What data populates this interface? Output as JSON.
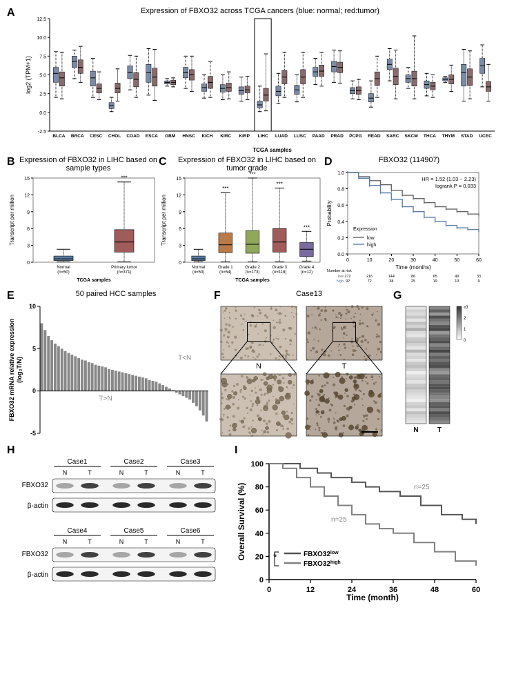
{
  "colors": {
    "normal": "#7a8ba8",
    "tumor": "#8a6b6b",
    "km_low": "#666666",
    "km_high": "#5b7ea6",
    "bar": "#888888",
    "axis": "#000000",
    "whisker": "#000000",
    "text": "#000000",
    "heatmap_min": "#f7f7f7",
    "heatmap_max": "#555555",
    "survival_low": "#555555",
    "survival_high": "#808080"
  },
  "panelA": {
    "label": "A",
    "title": "Expression of FBXO32 across TCGA cancers (blue: normal; red:tumor)",
    "ylabel": "log2 (TPM+1)",
    "xlabel": "TCGA samples",
    "ylim": [
      -2.5,
      12.5
    ],
    "yticks": [
      -2.5,
      0.0,
      2.5,
      5.0,
      7.5,
      10.0,
      12.5
    ],
    "highlight": "LIHC",
    "categories": [
      "BLCA",
      "BRCA",
      "CESC",
      "CHOL",
      "COAD",
      "ESCA",
      "GBM",
      "HNSC",
      "KICH",
      "KIRC",
      "KIRP",
      "LIHC",
      "LUAD",
      "LUSC",
      "PAAD",
      "PRAD",
      "PCPG",
      "READ",
      "SARC",
      "SKCM",
      "THCA",
      "THYM",
      "STAD",
      "UCEC"
    ],
    "boxes": [
      {
        "n": [
          4.0,
          5.2,
          6.0,
          2.0,
          8.1
        ],
        "t": [
          3.5,
          4.6,
          5.4,
          1.8,
          8.0
        ]
      },
      {
        "n": [
          6.0,
          6.8,
          7.5,
          4.5,
          8.3
        ],
        "t": [
          5.2,
          6.0,
          7.0,
          4.0,
          8.8
        ]
      },
      {
        "n": [
          3.5,
          4.6,
          5.5,
          2.0,
          7.2
        ],
        "t": [
          2.6,
          3.2,
          3.8,
          1.7,
          5.4
        ]
      },
      {
        "n": [
          0.5,
          0.9,
          1.3,
          0.1,
          2.0
        ],
        "t": [
          2.6,
          3.2,
          3.9,
          1.5,
          5.8
        ]
      },
      {
        "n": [
          4.5,
          5.3,
          6.2,
          3.0,
          7.6
        ],
        "t": [
          3.4,
          4.4,
          5.3,
          2.0,
          7.5
        ]
      },
      {
        "n": [
          4.0,
          5.3,
          6.4,
          2.3,
          8.5
        ],
        "t": [
          3.5,
          4.7,
          5.9,
          1.6,
          8.4
        ]
      },
      {
        "n": [
          3.8,
          4.0,
          4.2,
          3.5,
          4.5
        ],
        "t": [
          3.7,
          4.0,
          4.3,
          3.4,
          4.6
        ]
      },
      {
        "n": [
          4.6,
          5.3,
          6.0,
          3.2,
          7.5
        ],
        "t": [
          4.3,
          5.0,
          5.7,
          2.8,
          7.5
        ]
      },
      {
        "n": [
          2.8,
          3.3,
          3.8,
          1.9,
          5.0
        ],
        "t": [
          3.2,
          4.0,
          4.8,
          2.0,
          6.8
        ]
      },
      {
        "n": [
          2.7,
          3.2,
          3.7,
          1.7,
          5.0
        ],
        "t": [
          2.8,
          3.3,
          3.9,
          1.8,
          5.4
        ]
      },
      {
        "n": [
          2.4,
          2.9,
          3.4,
          1.5,
          4.7
        ],
        "t": [
          2.6,
          3.0,
          3.5,
          1.7,
          4.8
        ]
      },
      {
        "n": [
          0.6,
          1.0,
          1.5,
          0.1,
          3.5
        ],
        "t": [
          1.5,
          2.3,
          3.2,
          0.2,
          7.8
        ]
      },
      {
        "n": [
          2.2,
          2.8,
          3.5,
          1.2,
          5.2
        ],
        "t": [
          3.8,
          4.7,
          5.6,
          2.0,
          8.0
        ]
      },
      {
        "n": [
          2.4,
          3.0,
          3.6,
          1.4,
          5.0
        ],
        "t": [
          3.8,
          4.7,
          5.7,
          2.0,
          8.0
        ]
      },
      {
        "n": [
          4.8,
          5.4,
          6.0,
          3.7,
          7.2
        ],
        "t": [
          4.8,
          5.5,
          6.3,
          3.5,
          8.0
        ]
      },
      {
        "n": [
          5.4,
          6.1,
          6.8,
          4.0,
          8.3
        ],
        "t": [
          5.3,
          6.0,
          6.7,
          3.9,
          8.2
        ]
      },
      {
        "n": [
          2.5,
          2.9,
          3.3,
          1.8,
          4.2
        ],
        "t": [
          2.4,
          2.9,
          3.4,
          1.7,
          4.4
        ]
      },
      {
        "n": [
          1.4,
          1.9,
          2.5,
          0.7,
          4.2
        ],
        "t": [
          3.6,
          4.5,
          5.4,
          2.0,
          7.5
        ]
      },
      {
        "n": [
          5.7,
          6.4,
          7.1,
          4.2,
          8.5
        ],
        "t": [
          3.7,
          4.8,
          5.9,
          1.8,
          8.3
        ]
      },
      {
        "n": [
          4.0,
          4.5,
          5.0,
          3.2,
          6.0
        ],
        "t": [
          3.5,
          4.5,
          5.5,
          1.8,
          10.2
        ]
      },
      {
        "n": [
          3.2,
          3.7,
          4.2,
          2.2,
          5.2
        ],
        "t": [
          3.0,
          3.5,
          4.0,
          2.0,
          5.0
        ]
      },
      {
        "n": [
          4.2,
          4.4,
          4.6,
          4.0,
          4.8
        ],
        "t": [
          3.8,
          4.4,
          5.0,
          2.8,
          6.3
        ]
      },
      {
        "n": [
          3.5,
          5.3,
          6.4,
          1.5,
          8.4
        ],
        "t": [
          3.6,
          4.7,
          5.8,
          1.8,
          8.2
        ]
      },
      {
        "n": [
          5.2,
          6.2,
          7.2,
          3.4,
          9.0
        ],
        "t": [
          2.8,
          3.4,
          4.1,
          1.5,
          6.4
        ]
      }
    ]
  },
  "panelB": {
    "label": "B",
    "title": "Expression of FBXO32 in LIHC based on sample types",
    "ylabel": "Transcript per million",
    "xlabel": "TCGA samples",
    "ylim": [
      0,
      15
    ],
    "yticks": [
      0,
      3,
      6,
      9,
      12,
      15
    ],
    "categories": [
      "Normal\n(n=50)",
      "Primary tumor\n(n=371)"
    ],
    "boxes": [
      {
        "q1": 0.3,
        "med": 0.6,
        "q3": 1.1,
        "lo": 0.05,
        "hi": 2.3,
        "color": "#5b7ea6",
        "sig": ""
      },
      {
        "q1": 1.8,
        "med": 3.6,
        "q3": 5.8,
        "lo": 0.05,
        "hi": 14.3,
        "color": "#a05b5b",
        "sig": "***"
      }
    ]
  },
  "panelC": {
    "label": "C",
    "title": "Expression of FBXO32 in LIHC based on tumor grade",
    "ylabel": "Transcript per million",
    "xlabel": "TCGA samples",
    "ylim": [
      0,
      15
    ],
    "yticks": [
      0,
      3,
      6,
      9,
      12,
      15
    ],
    "categories": [
      "Normal\n(n=50)",
      "Grade 1\n(n=54)",
      "Grade 2\n(n=173)",
      "Grade 3\n(n=118)",
      "Grade 4\n(n=12)"
    ],
    "boxes": [
      {
        "q1": 0.3,
        "med": 0.6,
        "q3": 1.1,
        "lo": 0.05,
        "hi": 2.3,
        "color": "#5b7ea6",
        "sig": ""
      },
      {
        "q1": 1.7,
        "med": 3.1,
        "q3": 5.2,
        "lo": 0.05,
        "hi": 12.4,
        "color": "#b97a4a",
        "sig": "***"
      },
      {
        "q1": 1.6,
        "med": 3.2,
        "q3": 5.6,
        "lo": 0.05,
        "hi": 15.0,
        "color": "#8fa85a",
        "sig": "***"
      },
      {
        "q1": 1.8,
        "med": 3.6,
        "q3": 6.0,
        "lo": 0.05,
        "hi": 13.2,
        "color": "#a05b5b",
        "sig": "***"
      },
      {
        "q1": 1.0,
        "med": 2.3,
        "q3": 3.5,
        "lo": 0.2,
        "hi": 5.5,
        "color": "#7a6aa0",
        "sig": "***"
      }
    ]
  },
  "panelD": {
    "label": "D",
    "title": "FBXO32 (114907)",
    "ylabel": "Probability",
    "xlabel": "Time (months)",
    "hr": "HR = 1.52 (1.03 − 2.23)",
    "logrank": "logrank P = 0.033",
    "legend_title": "Expression",
    "legend_low": "low",
    "legend_high": "high",
    "xlim": [
      0,
      60
    ],
    "xticks": [
      0,
      10,
      20,
      30,
      40,
      50,
      60
    ],
    "ylim": [
      0,
      1
    ],
    "yticks": [
      0.0,
      0.2,
      0.4,
      0.6,
      0.8,
      1.0
    ],
    "curve_low": [
      [
        0,
        1.0
      ],
      [
        5,
        0.95
      ],
      [
        10,
        0.9
      ],
      [
        15,
        0.85
      ],
      [
        20,
        0.78
      ],
      [
        25,
        0.72
      ],
      [
        30,
        0.68
      ],
      [
        35,
        0.63
      ],
      [
        40,
        0.58
      ],
      [
        45,
        0.55
      ],
      [
        50,
        0.52
      ],
      [
        55,
        0.49
      ],
      [
        60,
        0.47
      ]
    ],
    "curve_high": [
      [
        0,
        1.0
      ],
      [
        5,
        0.93
      ],
      [
        10,
        0.84
      ],
      [
        15,
        0.75
      ],
      [
        20,
        0.67
      ],
      [
        25,
        0.58
      ],
      [
        30,
        0.52
      ],
      [
        35,
        0.45
      ],
      [
        40,
        0.4
      ],
      [
        45,
        0.35
      ],
      [
        50,
        0.32
      ],
      [
        55,
        0.3
      ],
      [
        60,
        0.27
      ]
    ],
    "risk_header": "Number at risk",
    "risk_rows": [
      {
        "label": "low",
        "vals": [
          272,
          216,
          144,
          86,
          65,
          49,
          33
        ]
      },
      {
        "label": "high",
        "vals": [
          92,
          72,
          38,
          25,
          19,
          13,
          9
        ]
      }
    ]
  },
  "panelE": {
    "label": "E",
    "title": "50 paired HCC samples",
    "ylabel": "FBXO32 mRNA relative expression\n(log₂T/N)",
    "note_pos": "T>N",
    "note_neg": "T<N",
    "ylim": [
      -5,
      10
    ],
    "yticks": [
      -5,
      0,
      5,
      10
    ],
    "bars": [
      8.0,
      7.2,
      6.5,
      6.0,
      5.6,
      5.3,
      5.0,
      4.7,
      4.5,
      4.3,
      4.1,
      3.9,
      3.7,
      3.6,
      3.4,
      3.3,
      3.1,
      3.0,
      2.9,
      2.8,
      2.6,
      2.5,
      2.4,
      2.3,
      2.2,
      2.1,
      2.0,
      1.9,
      1.8,
      1.7,
      1.6,
      1.5,
      1.3,
      1.2,
      1.1,
      0.9,
      0.7,
      0.5,
      0.3,
      0.1,
      -0.2,
      -0.4,
      -0.6,
      -0.8,
      -1.0,
      -1.4,
      -1.8,
      -2.3,
      -2.9,
      -3.6
    ]
  },
  "panelF": {
    "label": "F",
    "title": "Case13",
    "left_label": "N",
    "right_label": "T"
  },
  "panelG": {
    "label": "G",
    "columns": [
      "N",
      "T"
    ],
    "scale_labels": [
      "0",
      "1",
      "2",
      "≥3"
    ],
    "rows": 38,
    "data_N": [
      0.1,
      0.2,
      0.15,
      0.25,
      0.1,
      0.3,
      0.2,
      0.4,
      0.15,
      0.1,
      0.25,
      0.3,
      0.2,
      0.1,
      0.35,
      0.15,
      0.2,
      0.1,
      0.25,
      0.3,
      0.2,
      0.05,
      0.15,
      0.2,
      0.1,
      0.25,
      0.3,
      0.2,
      0.15,
      0.1,
      0.05,
      0.2,
      0.25,
      0.1,
      0.3,
      0.2,
      0.15,
      0.1
    ],
    "data_T": [
      0.6,
      0.8,
      0.5,
      0.9,
      0.7,
      0.6,
      0.85,
      0.95,
      0.5,
      0.7,
      0.8,
      0.9,
      0.6,
      0.75,
      0.95,
      0.65,
      0.8,
      0.7,
      0.85,
      0.9,
      0.6,
      0.5,
      0.75,
      0.8,
      0.7,
      0.85,
      0.9,
      0.8,
      0.7,
      0.6,
      0.55,
      0.8,
      0.85,
      0.65,
      0.9,
      0.8,
      0.7,
      0.6
    ]
  },
  "panelH": {
    "label": "H",
    "cases_top": [
      "Case1",
      "Case2",
      "Case3"
    ],
    "cases_bottom": [
      "Case4",
      "Case5",
      "Case6"
    ],
    "lane_labels": [
      "N",
      "T"
    ],
    "row_labels": [
      "FBXO32",
      "β-actin"
    ]
  },
  "panelI": {
    "label": "I",
    "ylabel": "Overall Survival (%)",
    "xlabel": "Time (month)",
    "ylim": [
      0,
      100
    ],
    "yticks": [
      0,
      20,
      40,
      60,
      80,
      100
    ],
    "xlim": [
      0,
      60
    ],
    "xticks": [
      0,
      12,
      24,
      36,
      48,
      60
    ],
    "n_low": "n=25",
    "n_high": "n=25",
    "sig": "*",
    "legend_low": "FBXO32low",
    "legend_high": "FBXO32high",
    "curve_low": [
      [
        0,
        100
      ],
      [
        6,
        100
      ],
      [
        9,
        96
      ],
      [
        14,
        92
      ],
      [
        18,
        88
      ],
      [
        24,
        84
      ],
      [
        28,
        80
      ],
      [
        32,
        76
      ],
      [
        38,
        72
      ],
      [
        44,
        64
      ],
      [
        50,
        56
      ],
      [
        56,
        52
      ],
      [
        60,
        48
      ]
    ],
    "curve_high": [
      [
        0,
        100
      ],
      [
        4,
        96
      ],
      [
        8,
        88
      ],
      [
        12,
        80
      ],
      [
        16,
        72
      ],
      [
        20,
        64
      ],
      [
        24,
        56
      ],
      [
        28,
        48
      ],
      [
        32,
        44
      ],
      [
        36,
        40
      ],
      [
        42,
        32
      ],
      [
        48,
        24
      ],
      [
        54,
        16
      ],
      [
        60,
        12
      ]
    ]
  }
}
